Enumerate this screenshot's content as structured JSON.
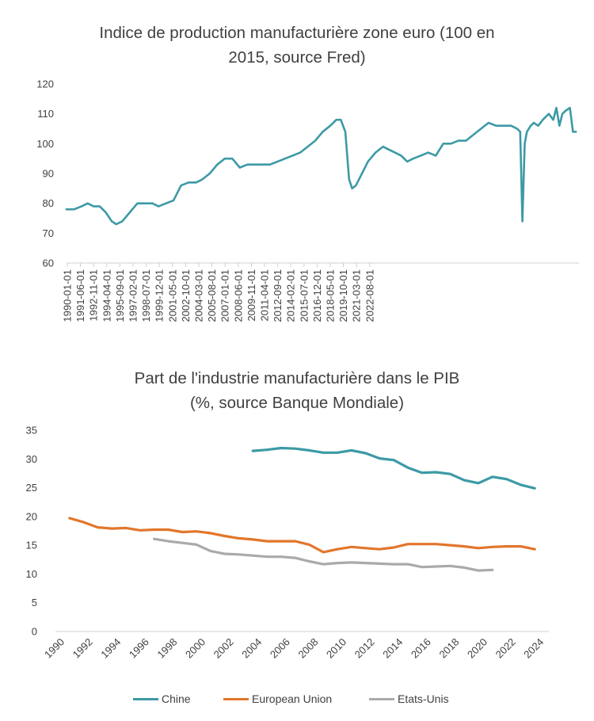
{
  "chart_data": [
    {
      "type": "line",
      "title_line1": "Indice de production manufacturière zone euro (100 en",
      "title_line2": "2015, source Fred)",
      "ylim": [
        60,
        120
      ],
      "yticks": [
        60,
        70,
        80,
        90,
        100,
        110,
        120
      ],
      "xlabels": [
        "1990-01-01",
        "1991-06-01",
        "1992-11-01",
        "1994-04-01",
        "1995-09-01",
        "1997-02-01",
        "1998-07-01",
        "1999-12-01",
        "2001-05-01",
        "2002-10-01",
        "2004-03-01",
        "2005-08-01",
        "2007-01-01",
        "2008-06-01",
        "2009-11-01",
        "2011-04-01",
        "2012-09-01",
        "2014-02-01",
        "2015-07-01",
        "2016-12-01",
        "2018-05-01",
        "2019-10-01",
        "2021-03-01",
        "2022-08-01"
      ],
      "color": "#3c9aa5",
      "series": [
        {
          "x": [
            1990.0,
            1990.5,
            1991.0,
            1991.4,
            1991.8,
            1992.2,
            1992.6,
            1993.0,
            1993.3,
            1993.7,
            1994.2,
            1994.7,
            1995.2,
            1995.7,
            1996.1,
            1996.6,
            1997.1,
            1997.6,
            1998.1,
            1998.6,
            1999.0,
            1999.5,
            2000.0,
            2000.5,
            2001.0,
            2001.5,
            2002.0,
            2002.5,
            2003.0,
            2003.5,
            2004.0,
            2004.5,
            2005.0,
            2005.5,
            2006.0,
            2006.5,
            2007.0,
            2007.5,
            2007.9,
            2008.2,
            2008.5,
            2008.75,
            2008.95,
            2009.2,
            2009.6,
            2010.0,
            2010.5,
            2011.0,
            2011.4,
            2011.8,
            2012.2,
            2012.6,
            2013.0,
            2013.5,
            2014.0,
            2014.5,
            2015.0,
            2015.5,
            2016.0,
            2016.5,
            2017.0,
            2017.5,
            2018.0,
            2018.5,
            2019.0,
            2019.5,
            2019.9,
            2020.1,
            2020.25,
            2020.4,
            2020.55,
            2020.8,
            2021.0,
            2021.3,
            2021.6,
            2022.0,
            2022.3,
            2022.5,
            2022.7,
            2022.9,
            2023.1,
            2023.4,
            2023.6,
            2023.8
          ],
          "values": [
            78,
            78,
            79,
            80,
            79,
            79,
            77,
            74,
            73,
            74,
            77,
            80,
            80,
            80,
            79,
            80,
            81,
            86,
            87,
            87,
            88,
            90,
            93,
            95,
            95,
            92,
            93,
            93,
            93,
            93,
            94,
            95,
            96,
            97,
            99,
            101,
            104,
            106,
            108,
            108,
            104,
            88,
            85,
            86,
            90,
            94,
            97,
            99,
            98,
            97,
            96,
            94,
            95,
            96,
            97,
            96,
            100,
            100,
            101,
            101,
            103,
            105,
            107,
            106,
            106,
            106,
            105,
            104,
            74,
            100,
            104,
            106,
            107,
            106,
            108,
            110,
            108,
            112,
            106,
            110,
            111,
            112,
            104,
            104
          ]
        }
      ]
    },
    {
      "type": "line",
      "title_line1": "Part de l'industrie manufacturière dans le PIB",
      "title_line2": "(%, source Banque Mondiale)",
      "ylim": [
        0,
        35
      ],
      "yticks": [
        0,
        5,
        10,
        15,
        20,
        25,
        30,
        35
      ],
      "xlim": [
        1990,
        2025
      ],
      "xlabels": [
        "1990",
        "1992",
        "1994",
        "1996",
        "1998",
        "2000",
        "2002",
        "2004",
        "2006",
        "2008",
        "2010",
        "2012",
        "2014",
        "2016",
        "2018",
        "2020",
        "2022",
        "2024"
      ],
      "series": [
        {
          "name": "Chine",
          "color": "#3c9aa5",
          "x": [
            2004,
            2005,
            2006,
            2007,
            2008,
            2009,
            2010,
            2011,
            2012,
            2013,
            2014,
            2015,
            2016,
            2017,
            2018,
            2019,
            2020,
            2021,
            2022,
            2023,
            2024
          ],
          "values": [
            31.4,
            31.6,
            31.9,
            31.8,
            31.5,
            31.1,
            31.1,
            31.5,
            31.0,
            30.1,
            29.8,
            28.5,
            27.6,
            27.7,
            27.4,
            26.3,
            25.8,
            26.9,
            26.5,
            25.5,
            24.9
          ]
        },
        {
          "name": "European Union",
          "color": "#e2762b",
          "x": [
            1991,
            1992,
            1993,
            1994,
            1995,
            1996,
            1997,
            1998,
            1999,
            2000,
            2001,
            2002,
            2003,
            2004,
            2005,
            2006,
            2007,
            2008,
            2009,
            2010,
            2011,
            2012,
            2013,
            2014,
            2015,
            2016,
            2017,
            2018,
            2019,
            2020,
            2021,
            2022,
            2023,
            2024
          ],
          "values": [
            19.7,
            19.0,
            18.1,
            17.9,
            18.0,
            17.6,
            17.7,
            17.7,
            17.3,
            17.4,
            17.1,
            16.6,
            16.2,
            16.0,
            15.7,
            15.7,
            15.7,
            15.1,
            13.8,
            14.3,
            14.7,
            14.5,
            14.3,
            14.6,
            15.2,
            15.2,
            15.2,
            15.0,
            14.8,
            14.5,
            14.7,
            14.8,
            14.8,
            14.3
          ]
        },
        {
          "name": "Etats-Unis",
          "color": "#aaaaaa",
          "x": [
            1997,
            1998,
            1999,
            2000,
            2001,
            2002,
            2003,
            2004,
            2005,
            2006,
            2007,
            2008,
            2009,
            2010,
            2011,
            2012,
            2013,
            2014,
            2015,
            2016,
            2017,
            2018,
            2019,
            2020,
            2021
          ],
          "values": [
            16.1,
            15.7,
            15.4,
            15.1,
            14.0,
            13.5,
            13.4,
            13.2,
            13.0,
            13.0,
            12.8,
            12.2,
            11.7,
            11.9,
            12.0,
            11.9,
            11.8,
            11.7,
            11.7,
            11.2,
            11.3,
            11.4,
            11.1,
            10.6,
            10.7
          ]
        }
      ]
    }
  ]
}
